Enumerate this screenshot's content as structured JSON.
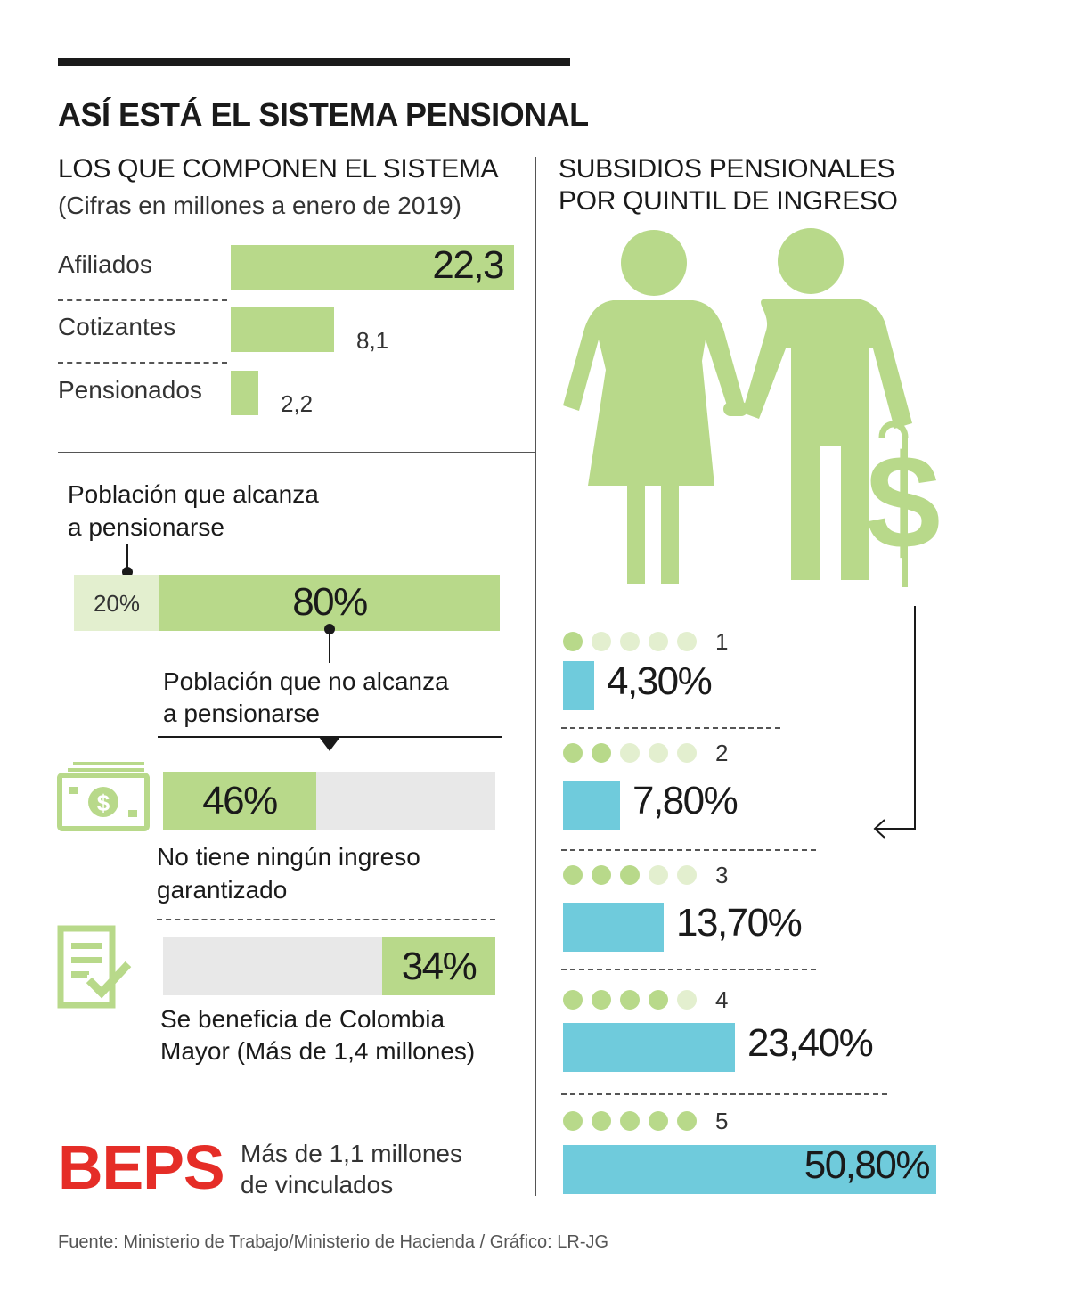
{
  "title": "ASÍ ESTÁ EL SISTEMA PENSIONAL",
  "left_section": {
    "title": "LOS QUE COMPONEN EL SISTEMA",
    "subtitle": "(Cifras en millones a enero de 2019)"
  },
  "right_section": {
    "title_line1": "SUBSIDIOS PENSIONALES",
    "title_line2": "POR QUINTIL DE INGRESO"
  },
  "chart_data": [
    {
      "type": "bar",
      "orientation": "horizontal",
      "title": "LOS QUE COMPONEN EL SISTEMA",
      "subtitle": "(Cifras en millones a enero de 2019)",
      "categories": [
        "Afiliados",
        "Cotizantes",
        "Pensionados"
      ],
      "values": [
        22.3,
        8.1,
        2.2
      ],
      "labels": [
        "22,3",
        "8,1",
        "2,2"
      ],
      "colors": [
        "#b8d98a"
      ]
    },
    {
      "type": "bar",
      "orientation": "horizontal",
      "stacked": true,
      "categories": [
        "Población que alcanza a pensionarse",
        "Población que no alcanza a pensionarse"
      ],
      "values": [
        20,
        80
      ],
      "labels": [
        "20%",
        "80%"
      ],
      "colors": [
        "#e3efcf",
        "#b8d98a"
      ]
    },
    {
      "type": "bar",
      "orientation": "horizontal",
      "categories": [
        "No tiene ningún ingreso garantizado",
        "Se beneficia de Colombia Mayor (Más de 1,4 millones)"
      ],
      "values": [
        46,
        34
      ],
      "labels": [
        "46%",
        "34%"
      ],
      "ylim": [
        0,
        100
      ],
      "colors": [
        "#b8d98a",
        "#e8e8e8"
      ]
    },
    {
      "type": "bar",
      "orientation": "horizontal",
      "title": "SUBSIDIOS PENSIONALES POR QUINTIL DE INGRESO",
      "categories": [
        "1",
        "2",
        "3",
        "4",
        "5"
      ],
      "values": [
        4.3,
        7.8,
        13.7,
        23.4,
        50.8
      ],
      "labels": [
        "4,30%",
        "7,80%",
        "13,70%",
        "23,40%",
        "50,80%"
      ],
      "colors": [
        "#6fcbdc"
      ]
    }
  ],
  "population": {
    "reach_label_line1": "Población que alcanza",
    "reach_label_line2": "a pensionarse",
    "reach_pct": "20%",
    "not_reach_pct": "80%",
    "not_reach_label_line1": "Población que no alcanza",
    "not_reach_label_line2": "a pensionarse"
  },
  "income": {
    "no_income_pct": "46%",
    "no_income_line1": "No tiene ningún ingreso",
    "no_income_line2": "garantizado",
    "colombia_mayor_pct": "34%",
    "colombia_mayor_line1": "Se beneficia de Colombia",
    "colombia_mayor_line2": "Mayor (Más de 1,4 millones)"
  },
  "beps": {
    "label": "BEPS",
    "text_line1": "Más de 1,1 millones",
    "text_line2": "de vinculados"
  },
  "source": "Fuente: Ministerio de Trabajo/Ministerio de Hacienda / Gráfico: LR-JG",
  "icons": [
    "couple-icon",
    "dollar-cane-icon",
    "banknote-icon",
    "checklist-icon"
  ],
  "colors": {
    "green": "#b8d98a",
    "light_green": "#e3efcf",
    "blue": "#6fcbdc",
    "grey": "#e8e8e8",
    "beps_red": "#e52d27"
  }
}
